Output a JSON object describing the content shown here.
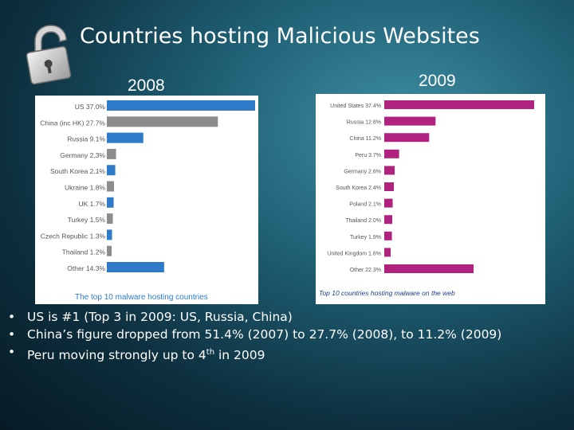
{
  "slide": {
    "title": "Countries hosting Malicious Websites",
    "icon": "padlock-icon",
    "year_left": "2008",
    "year_right": "2009",
    "bullets": [
      {
        "text": "US is #1 (Top 3 in 2009:  US, Russia, China)"
      },
      {
        "text": "China’s figure dropped from 51.4% (2007) to 27.7% (2008), to 11.2% (2009)"
      },
      {
        "text_before": "Peru moving strongly up to 4",
        "sup": "th",
        "text_after": " in 2009"
      }
    ],
    "bullet_glyph": "•",
    "colors": {
      "title": "#ffffff",
      "background": "#1f5f74"
    }
  },
  "chart_data": [
    {
      "type": "bar",
      "orientation": "horizontal",
      "title": "The top 10 malware hosting countries",
      "categories": [
        "US 37.0%",
        "China (inc HK) 27.7%",
        "Russia 9.1%",
        "Germany 2.3%",
        "South Korea 2.1%",
        "Ukraine 1.8%",
        "UK 1.7%",
        "Turkey 1.5%",
        "Czech Republic 1.3%",
        "Thailand 1.2%",
        "Other 14.3%"
      ],
      "values": [
        37.0,
        27.7,
        9.1,
        2.3,
        2.1,
        1.8,
        1.7,
        1.5,
        1.3,
        1.2,
        14.3
      ],
      "bar_colors": [
        "#2e7cc9",
        "#8c8c8c",
        "#2e7cc9",
        "#8c8c8c",
        "#2e7cc9",
        "#8c8c8c",
        "#2e7cc9",
        "#8c8c8c",
        "#2e7cc9",
        "#8c8c8c",
        "#2e7cc9"
      ],
      "grid": false
    },
    {
      "type": "bar",
      "orientation": "horizontal",
      "title": "Top 10 countries hosting malware on the web",
      "categories": [
        "United States 37.4%",
        "Russia 12.8%",
        "China 11.2%",
        "Peru 3.7%",
        "Germany 2.6%",
        "South Korea 2.4%",
        "Poland 2.1%",
        "Thailand 2.0%",
        "Turkey 1.9%",
        "United Kingdom 1.6%",
        "Other 22.3%"
      ],
      "values": [
        37.4,
        12.8,
        11.2,
        3.7,
        2.6,
        2.4,
        2.1,
        2.0,
        1.9,
        1.6,
        22.3
      ],
      "bar_color": "#b0227e",
      "grid": false
    }
  ]
}
